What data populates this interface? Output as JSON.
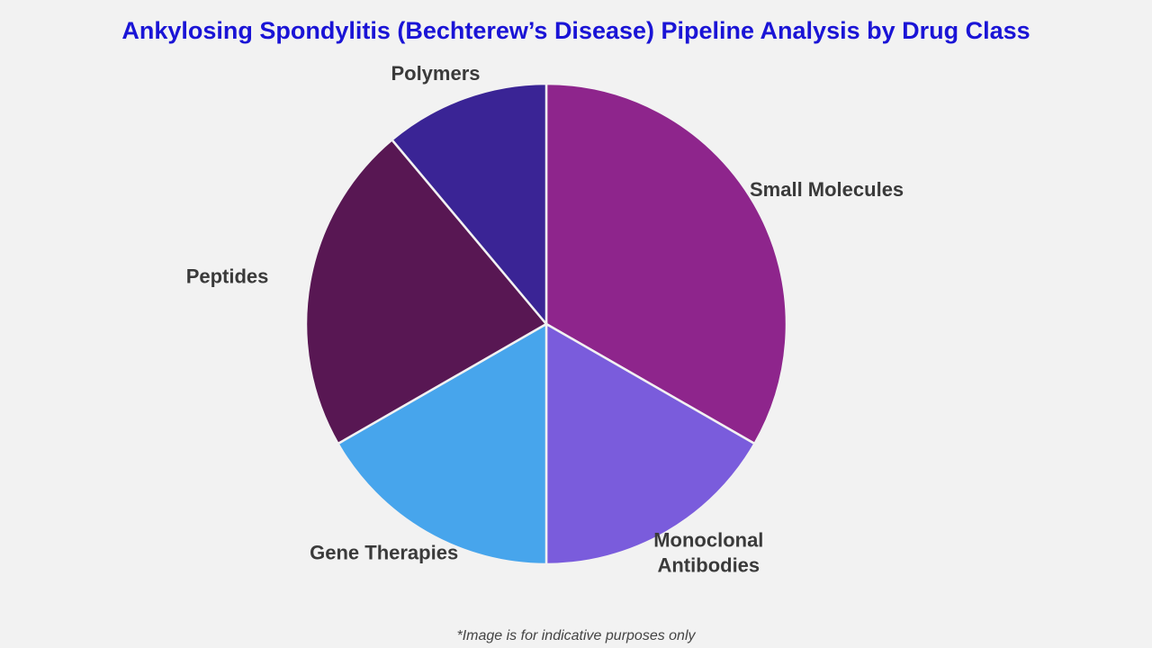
{
  "chart_data": {
    "type": "pie",
    "title": "Ankylosing Spondylitis (Bechterew’s Disease) Pipeline Analysis by Drug Class",
    "categories": [
      "Small Molecules",
      "Monoclonal Antibodies",
      "Gene Therapies",
      "Peptides",
      "Polymers"
    ],
    "values": [
      33.3,
      16.7,
      16.7,
      22.2,
      11.1
    ],
    "colors": [
      "#8e258c",
      "#7a5cdc",
      "#47a5ec",
      "#581753",
      "#3a2495"
    ],
    "footnote": "*Image is for indicative purposes only"
  }
}
